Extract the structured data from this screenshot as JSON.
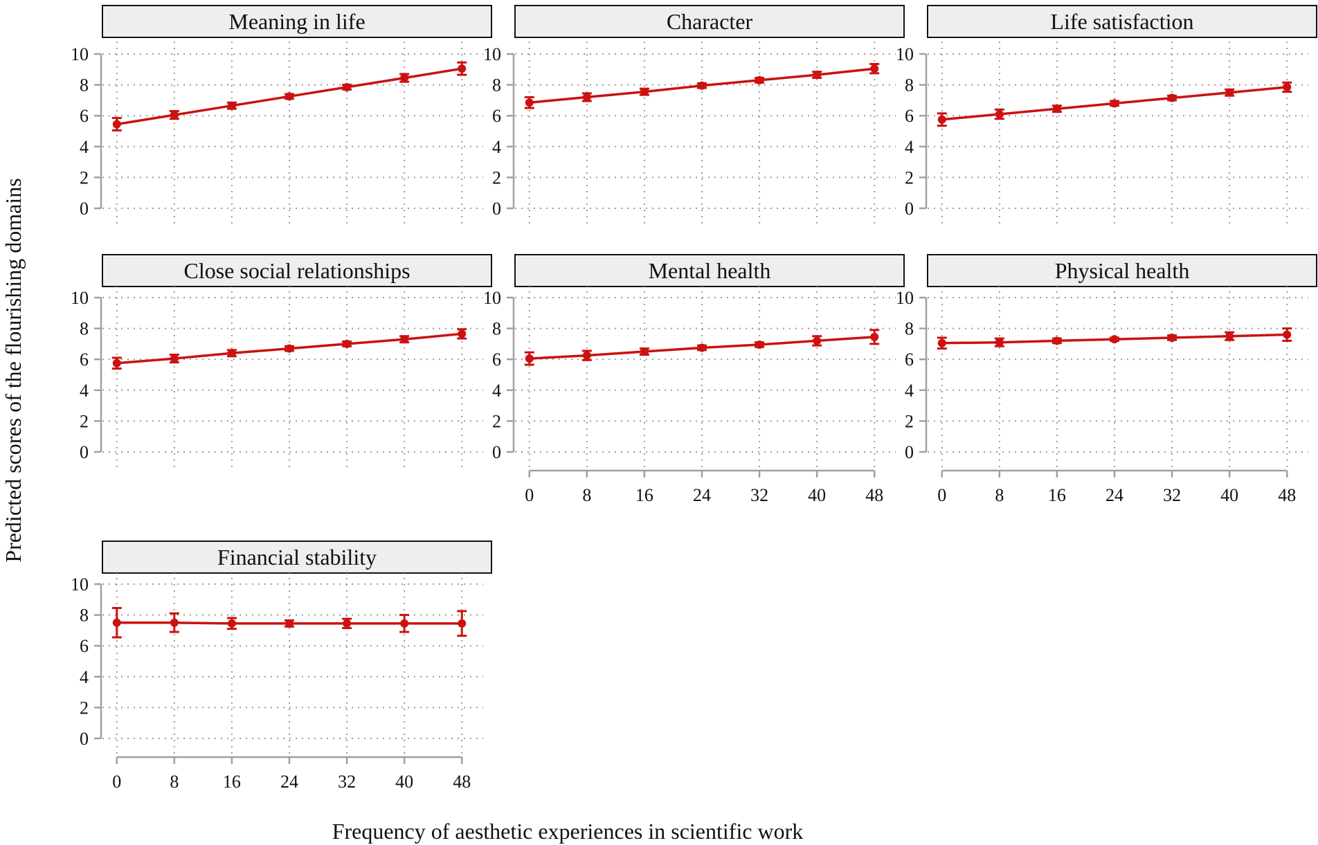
{
  "chart_data": {
    "type": "line",
    "xlabel": "Frequency of aesthetic experiences in scientific work",
    "ylabel": "Predicted scores of the flourishing domains",
    "series_color": "#cc1111",
    "x_ticks": [
      0,
      8,
      16,
      24,
      32,
      40,
      48
    ],
    "x_tick_labels": [
      "0",
      "8",
      "16",
      "24",
      "32",
      "40",
      "48"
    ],
    "y_ticks": [
      0,
      2,
      4,
      6,
      8,
      10
    ],
    "y_tick_labels": [
      "0",
      "2",
      "4",
      "6",
      "8",
      "10"
    ],
    "xlim": [
      -2,
      50
    ],
    "ylim": [
      0,
      10
    ],
    "panels": [
      {
        "title": "Meaning in life",
        "x": [
          0,
          8,
          16,
          24,
          32,
          40,
          48
        ],
        "y": [
          5.45,
          6.05,
          6.65,
          7.25,
          7.85,
          8.45,
          9.05
        ],
        "lower": [
          5.05,
          5.8,
          6.45,
          7.1,
          7.7,
          8.2,
          8.65
        ],
        "upper": [
          5.85,
          6.3,
          6.85,
          7.4,
          8.0,
          8.7,
          9.45
        ]
      },
      {
        "title": "Character",
        "x": [
          0,
          8,
          16,
          24,
          32,
          40,
          48
        ],
        "y": [
          6.85,
          7.2,
          7.55,
          7.95,
          8.3,
          8.65,
          9.05
        ],
        "lower": [
          6.5,
          6.95,
          7.35,
          7.8,
          8.15,
          8.45,
          8.75
        ],
        "upper": [
          7.2,
          7.45,
          7.75,
          8.1,
          8.45,
          8.85,
          9.35
        ]
      },
      {
        "title": "Life satisfaction",
        "x": [
          0,
          8,
          16,
          24,
          32,
          40,
          48
        ],
        "y": [
          5.75,
          6.1,
          6.45,
          6.8,
          7.15,
          7.5,
          7.85
        ],
        "lower": [
          5.35,
          5.8,
          6.25,
          6.65,
          7.0,
          7.3,
          7.55
        ],
        "upper": [
          6.15,
          6.4,
          6.65,
          6.95,
          7.3,
          7.7,
          8.15
        ]
      },
      {
        "title": "Close social relationships",
        "x": [
          0,
          8,
          16,
          24,
          32,
          40,
          48
        ],
        "y": [
          5.75,
          6.05,
          6.4,
          6.7,
          7.0,
          7.3,
          7.65
        ],
        "lower": [
          5.4,
          5.8,
          6.2,
          6.55,
          6.85,
          7.1,
          7.35
        ],
        "upper": [
          6.1,
          6.3,
          6.6,
          6.85,
          7.15,
          7.5,
          7.95
        ]
      },
      {
        "title": "Mental health",
        "x": [
          0,
          8,
          16,
          24,
          32,
          40,
          48
        ],
        "y": [
          6.05,
          6.25,
          6.5,
          6.75,
          6.95,
          7.2,
          7.45
        ],
        "lower": [
          5.65,
          5.95,
          6.3,
          6.6,
          6.8,
          6.9,
          7.0
        ],
        "upper": [
          6.45,
          6.55,
          6.7,
          6.9,
          7.1,
          7.5,
          7.9
        ]
      },
      {
        "title": "Physical health",
        "x": [
          0,
          8,
          16,
          24,
          32,
          40,
          48
        ],
        "y": [
          7.05,
          7.1,
          7.2,
          7.3,
          7.4,
          7.5,
          7.6
        ],
        "lower": [
          6.7,
          6.85,
          7.05,
          7.2,
          7.25,
          7.25,
          7.2
        ],
        "upper": [
          7.4,
          7.35,
          7.35,
          7.4,
          7.55,
          7.75,
          8.0
        ]
      },
      {
        "title": "Financial stability",
        "x": [
          0,
          8,
          16,
          24,
          32,
          40,
          48
        ],
        "y": [
          7.5,
          7.5,
          7.45,
          7.45,
          7.45,
          7.45,
          7.45
        ],
        "lower": [
          6.55,
          6.9,
          7.1,
          7.25,
          7.15,
          6.9,
          6.65
        ],
        "upper": [
          8.45,
          8.1,
          7.8,
          7.65,
          7.75,
          8.0,
          8.25
        ]
      }
    ]
  }
}
